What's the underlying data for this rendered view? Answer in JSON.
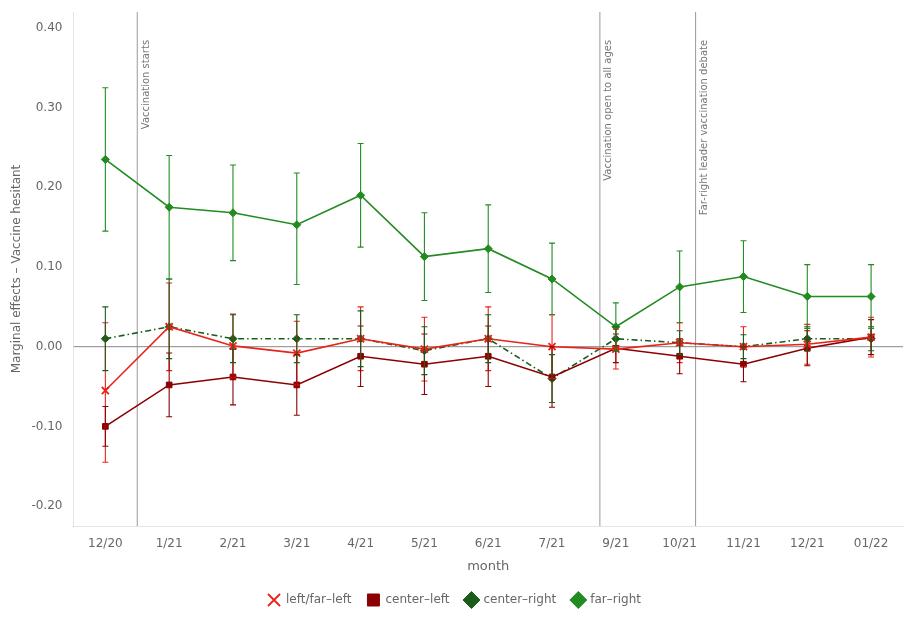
{
  "chart_data": {
    "type": "line",
    "xlabel": "month",
    "ylabel": "Marginal effects – Vaccine hesitant",
    "categories": [
      "12/20",
      "1/21",
      "2/21",
      "3/21",
      "4/21",
      "5/21",
      "6/21",
      "7/21",
      "9/21",
      "10/21",
      "11/21",
      "12/21",
      "01/22"
    ],
    "series": [
      {
        "name": "left/far–left",
        "color": "#e8231a",
        "marker": "x",
        "line_style": "solid",
        "values": [
          -0.055,
          0.025,
          0.001,
          -0.008,
          0.01,
          -0.003,
          0.01,
          0.0,
          -0.003,
          0.005,
          0.0,
          0.003,
          0.012
        ],
        "error_minus": [
          0.09,
          0.055,
          0.04,
          0.04,
          0.04,
          0.04,
          0.04,
          0.04,
          0.025,
          0.025,
          0.025,
          0.025,
          0.025
        ],
        "error_plus": [
          0.085,
          0.055,
          0.04,
          0.04,
          0.04,
          0.04,
          0.04,
          0.04,
          0.025,
          0.025,
          0.025,
          0.025,
          0.025
        ]
      },
      {
        "name": "center–left",
        "color": "#8b0000",
        "marker": "square",
        "line_style": "solid",
        "values": [
          -0.1,
          -0.048,
          -0.038,
          -0.048,
          -0.012,
          -0.022,
          -0.012,
          -0.038,
          -0.002,
          -0.012,
          -0.022,
          -0.002,
          0.012
        ],
        "error_minus": [
          0.025,
          0.04,
          0.035,
          0.038,
          0.038,
          0.038,
          0.038,
          0.038,
          0.018,
          0.022,
          0.022,
          0.022,
          0.022
        ],
        "error_plus": [
          0.025,
          0.04,
          0.035,
          0.038,
          0.038,
          0.038,
          0.038,
          0.038,
          0.018,
          0.022,
          0.022,
          0.022,
          0.022
        ]
      },
      {
        "name": "center–right",
        "color": "#1a5c1a",
        "marker": "diamond",
        "line_style": "dashdot",
        "values": [
          0.01,
          0.025,
          0.01,
          0.01,
          0.01,
          -0.005,
          0.01,
          -0.04,
          0.01,
          0.005,
          0.0,
          0.01,
          0.01
        ],
        "error_minus": [
          0.04,
          0.04,
          0.03,
          0.03,
          0.035,
          0.03,
          0.03,
          0.03,
          0.015,
          0.015,
          0.015,
          0.015,
          0.015
        ],
        "error_plus": [
          0.04,
          0.06,
          0.03,
          0.03,
          0.035,
          0.03,
          0.03,
          0.03,
          0.015,
          0.015,
          0.015,
          0.015,
          0.015
        ]
      },
      {
        "name": "far–right",
        "color": "#228b22",
        "marker": "diamond",
        "line_style": "solid",
        "values": [
          0.235,
          0.175,
          0.168,
          0.153,
          0.19,
          0.113,
          0.123,
          0.085,
          0.025,
          0.075,
          0.088,
          0.063,
          0.063
        ],
        "error_minus": [
          0.09,
          0.09,
          0.06,
          0.075,
          0.065,
          0.055,
          0.055,
          0.045,
          0.03,
          0.045,
          0.045,
          0.04,
          0.04
        ],
        "error_plus": [
          0.09,
          0.065,
          0.06,
          0.065,
          0.065,
          0.055,
          0.055,
          0.045,
          0.03,
          0.045,
          0.045,
          0.04,
          0.04
        ]
      }
    ],
    "annotations": [
      {
        "x": 0.5,
        "text": "Vaccination starts",
        "y": 0.385
      },
      {
        "x": 7.75,
        "text": "Vaccination open to all ages",
        "y": 0.385
      },
      {
        "x": 9.25,
        "text": "Far-right leader vaccination debate",
        "y": 0.385
      },
      {
        "y": 0
      }
    ],
    "ylim": [
      -0.225,
      0.42
    ],
    "yticks": [
      {
        "value": -0.2,
        "label": "-0.20"
      },
      {
        "value": -0.1,
        "label": "-0.10"
      },
      {
        "value": 0,
        "label": "0.00"
      },
      {
        "value": 0.1,
        "label": "0.10"
      },
      {
        "value": 0.2,
        "label": "0.20"
      },
      {
        "value": 0.3,
        "label": "0.30"
      },
      {
        "value": 0.4,
        "label": "0.40"
      }
    ],
    "grid": false,
    "legend": "bottom"
  }
}
